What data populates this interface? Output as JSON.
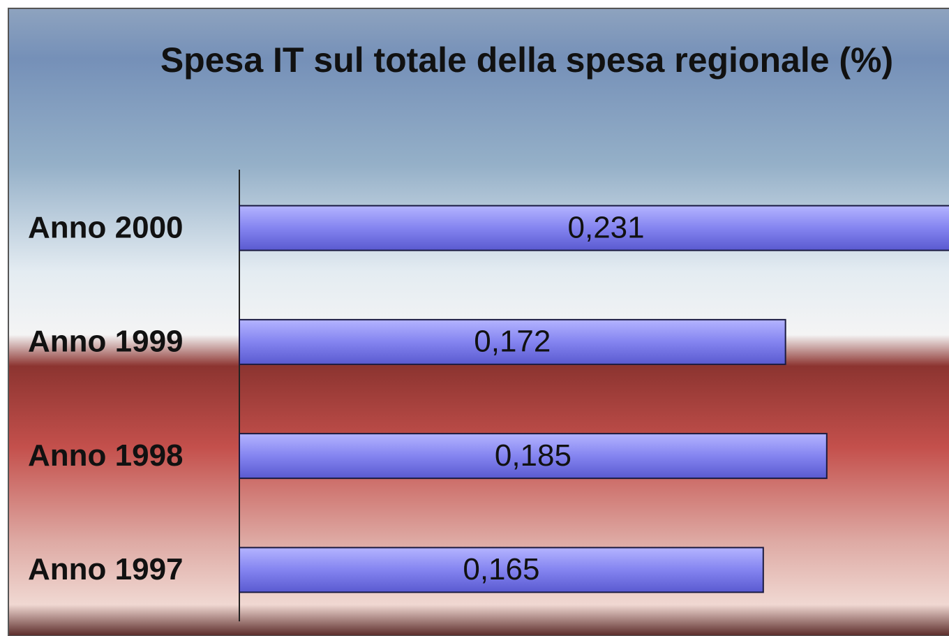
{
  "chart_data": {
    "type": "bar",
    "orientation": "horizontal",
    "title": "Spesa IT sul totale della spesa regionale (%)",
    "categories": [
      "Anno 2000",
      "Anno 1999",
      "Anno 1998",
      "Anno 1997"
    ],
    "values": [
      0.231,
      0.172,
      0.185,
      0.165
    ],
    "value_labels": [
      "0,231",
      "0,172",
      "0,185",
      "0,165"
    ],
    "color": "#8585f2",
    "xlim": [
      0,
      0.2235
    ]
  }
}
